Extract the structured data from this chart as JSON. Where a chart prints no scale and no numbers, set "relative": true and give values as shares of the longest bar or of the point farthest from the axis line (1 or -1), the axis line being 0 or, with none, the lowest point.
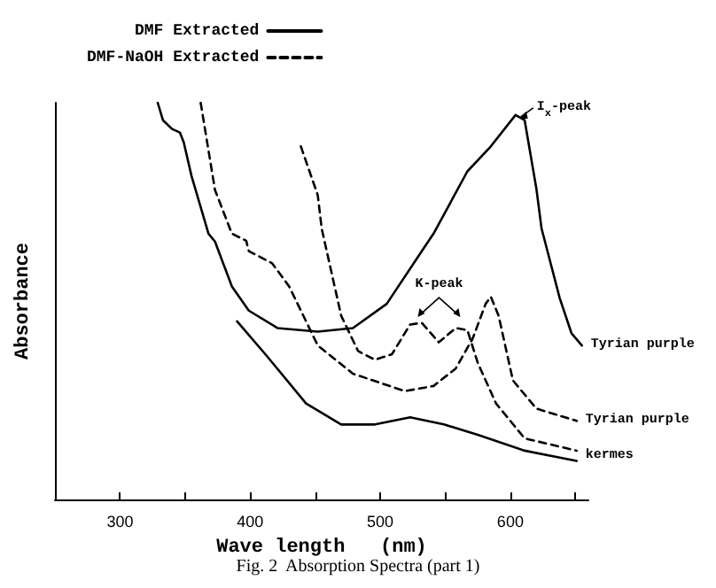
{
  "chart_data": {
    "type": "line",
    "title": "Fig. 2  Absorption Spectra (part 1)",
    "xlabel": "Wave length   (nm)",
    "ylabel": "Absorbance",
    "relative": true,
    "xlim": [
      250,
      660
    ],
    "xticks": [
      300,
      {
        "value": 350,
        "label": null
      },
      400,
      {
        "value": 450,
        "label": null
      },
      500,
      {
        "value": 550,
        "label": null
      },
      600,
      {
        "value": 650,
        "label": null
      }
    ],
    "legend": "top left",
    "marker": "none",
    "grid": false,
    "series": [
      {
        "name": "DMF Extracted",
        "color": "#000000",
        "line_style": "solid",
        "x": [
          329,
          333,
          340,
          346,
          349,
          355,
          368,
          373,
          386,
          399,
          421,
          452,
          479,
          505,
          532,
          541,
          567,
          585,
          604,
          611,
          620,
          624,
          638,
          647,
          655
        ],
        "values": [
          1.0,
          0.956,
          0.934,
          0.925,
          0.9,
          0.815,
          0.67,
          0.65,
          0.537,
          0.476,
          0.432,
          0.423,
          0.432,
          0.493,
          0.626,
          0.67,
          0.827,
          0.89,
          0.969,
          0.956,
          0.784,
          0.683,
          0.507,
          0.419,
          0.388
        ]
      },
      {
        "name": "DMF-NaOH Extracted",
        "color": "#000000",
        "line_style": "dashed",
        "x": [
          362,
          373,
          386,
          397,
          399,
          417,
          430,
          452,
          479,
          519,
          541,
          558,
          571,
          581,
          585,
          591,
          602,
          620,
          651
        ],
        "values": [
          1.0,
          0.78,
          0.67,
          0.652,
          0.626,
          0.595,
          0.537,
          0.388,
          0.317,
          0.273,
          0.286,
          0.33,
          0.405,
          0.493,
          0.511,
          0.463,
          0.3,
          0.229,
          0.198
        ]
      },
      {
        "color": "#000000",
        "line_style": "dashed",
        "x": [
          439,
          452,
          455,
          470,
          483,
          496,
          509,
          523,
          532,
          545,
          558,
          567,
          575,
          589,
          611,
          651
        ],
        "values": [
          0.89,
          0.767,
          0.683,
          0.463,
          0.374,
          0.352,
          0.366,
          0.441,
          0.445,
          0.396,
          0.432,
          0.427,
          0.344,
          0.242,
          0.154,
          0.123
        ]
      },
      {
        "color": "#000000",
        "line_style": "solid",
        "x": [
          390,
          413,
          443,
          470,
          496,
          523,
          549,
          575,
          611,
          651
        ],
        "values": [
          0.449,
          0.361,
          0.242,
          0.189,
          0.189,
          0.207,
          0.189,
          0.163,
          0.123,
          0.097
        ]
      }
    ],
    "annotations": [
      {
        "text": "I$_{x}$-peak",
        "x": 604,
        "y": 0.969
      },
      "K-peak",
      {
        "text": "Tyrian purple",
        "x": 655,
        "y": 0.388
      },
      {
        "text": "Tyrian purple",
        "x": 651,
        "y": 0.198
      },
      {
        "text": "kermes",
        "x": 651,
        "y": 0.11
      }
    ]
  }
}
